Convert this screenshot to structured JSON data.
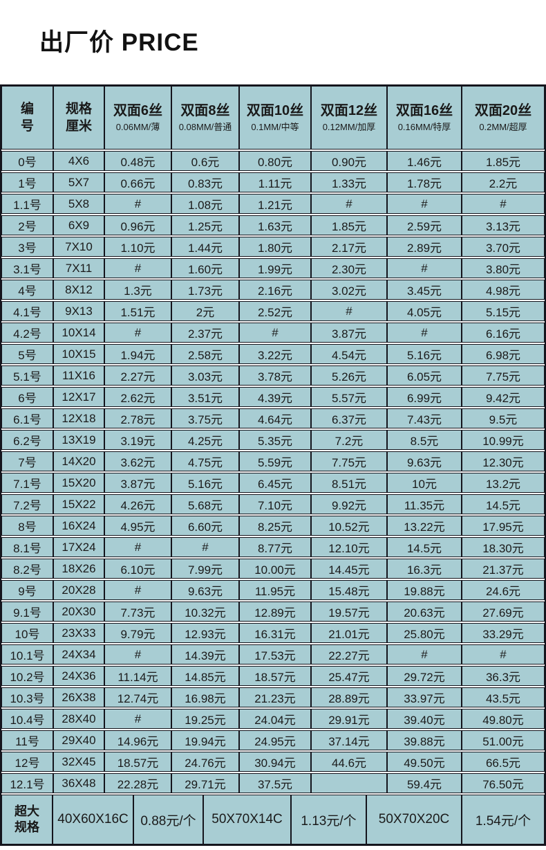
{
  "page": {
    "title": "出厂价 PRICE"
  },
  "colors": {
    "cell_background": "#a8cdd3",
    "grid_border": "#14141c",
    "text": "#1a1a1a",
    "page_background": "#ffffff"
  },
  "table": {
    "header": {
      "id_lines": [
        "编",
        "号"
      ],
      "spec_lines": [
        "规格",
        "厘米"
      ],
      "thickness_columns": [
        {
          "title": "双面6丝",
          "sub": "0.06MM/薄"
        },
        {
          "title": "双面8丝",
          "sub": "0.08MM/普通"
        },
        {
          "title": "双面10丝",
          "sub": "0.1MM/中等"
        },
        {
          "title": "双面12丝",
          "sub": "0.12MM/加厚"
        },
        {
          "title": "双面16丝",
          "sub": "0.16MM/特厚"
        },
        {
          "title": "双面20丝",
          "sub": "0.2MM/超厚"
        }
      ]
    },
    "rows": [
      {
        "id": "0号",
        "spec": "4X6",
        "prices": [
          "0.48元",
          "0.6元",
          "0.80元",
          "0.90元",
          "1.46元",
          "1.85元"
        ]
      },
      {
        "id": "1号",
        "spec": "5X7",
        "prices": [
          "0.66元",
          "0.83元",
          "1.11元",
          "1.33元",
          "1.78元",
          "2.2元"
        ]
      },
      {
        "id": "1.1号",
        "spec": "5X8",
        "prices": [
          "#",
          "1.08元",
          "1.21元",
          "#",
          "#",
          "#"
        ]
      },
      {
        "id": "2号",
        "spec": "6X9",
        "prices": [
          "0.96元",
          "1.25元",
          "1.63元",
          "1.85元",
          "2.59元",
          "3.13元"
        ]
      },
      {
        "id": "3号",
        "spec": "7X10",
        "prices": [
          "1.10元",
          "1.44元",
          "1.80元",
          "2.17元",
          "2.89元",
          "3.70元"
        ]
      },
      {
        "id": "3.1号",
        "spec": "7X11",
        "prices": [
          "#",
          "1.60元",
          "1.99元",
          "2.30元",
          "#",
          "3.80元"
        ]
      },
      {
        "id": "4号",
        "spec": "8X12",
        "prices": [
          "1.3元",
          "1.73元",
          "2.16元",
          "3.02元",
          "3.45元",
          "4.98元"
        ]
      },
      {
        "id": "4.1号",
        "spec": "9X13",
        "prices": [
          "1.51元",
          "2元",
          "2.52元",
          "#",
          "4.05元",
          "5.15元"
        ]
      },
      {
        "id": "4.2号",
        "spec": "10X14",
        "prices": [
          "#",
          "2.37元",
          "#",
          "3.87元",
          "#",
          "6.16元"
        ]
      },
      {
        "id": "5号",
        "spec": "10X15",
        "prices": [
          "1.94元",
          "2.58元",
          "3.22元",
          "4.54元",
          "5.16元",
          "6.98元"
        ]
      },
      {
        "id": "5.1号",
        "spec": "11X16",
        "prices": [
          "2.27元",
          "3.03元",
          "3.78元",
          "5.26元",
          "6.05元",
          "7.75元"
        ]
      },
      {
        "id": "6号",
        "spec": "12X17",
        "prices": [
          "2.62元",
          "3.51元",
          "4.39元",
          "5.57元",
          "6.99元",
          "9.42元"
        ]
      },
      {
        "id": "6.1号",
        "spec": "12X18",
        "prices": [
          "2.78元",
          "3.75元",
          "4.64元",
          "6.37元",
          "7.43元",
          "9.5元"
        ]
      },
      {
        "id": "6.2号",
        "spec": "13X19",
        "prices": [
          "3.19元",
          "4.25元",
          "5.35元",
          "7.2元",
          "8.5元",
          "10.99元"
        ]
      },
      {
        "id": "7号",
        "spec": "14X20",
        "prices": [
          "3.62元",
          "4.75元",
          "5.59元",
          "7.75元",
          "9.63元",
          "12.30元"
        ]
      },
      {
        "id": "7.1号",
        "spec": "15X20",
        "prices": [
          "3.87元",
          "5.16元",
          "6.45元",
          "8.51元",
          "10元",
          "13.2元"
        ]
      },
      {
        "id": "7.2号",
        "spec": "15X22",
        "prices": [
          "4.26元",
          "5.68元",
          "7.10元",
          "9.92元",
          "11.35元",
          "14.5元"
        ]
      },
      {
        "id": "8号",
        "spec": "16X24",
        "prices": [
          "4.95元",
          "6.60元",
          "8.25元",
          "10.52元",
          "13.22元",
          "17.95元"
        ]
      },
      {
        "id": "8.1号",
        "spec": "17X24",
        "prices": [
          "#",
          "#",
          "8.77元",
          "12.10元",
          "14.5元",
          "18.30元"
        ]
      },
      {
        "id": "8.2号",
        "spec": "18X26",
        "prices": [
          "6.10元",
          "7.99元",
          "10.00元",
          "14.45元",
          "16.3元",
          "21.37元"
        ]
      },
      {
        "id": "9号",
        "spec": "20X28",
        "prices": [
          "#",
          "9.63元",
          "11.95元",
          "15.48元",
          "19.88元",
          "24.6元"
        ]
      },
      {
        "id": "9.1号",
        "spec": "20X30",
        "prices": [
          "7.73元",
          "10.32元",
          "12.89元",
          "19.57元",
          "20.63元",
          "27.69元"
        ]
      },
      {
        "id": "10号",
        "spec": "23X33",
        "prices": [
          "9.79元",
          "12.93元",
          "16.31元",
          "21.01元",
          "25.80元",
          "33.29元"
        ]
      },
      {
        "id": "10.1号",
        "spec": "24X34",
        "prices": [
          "#",
          "14.39元",
          "17.53元",
          "22.27元",
          "#",
          "#"
        ]
      },
      {
        "id": "10.2号",
        "spec": "24X36",
        "prices": [
          "11.14元",
          "14.85元",
          "18.57元",
          "25.47元",
          "29.72元",
          "36.3元"
        ]
      },
      {
        "id": "10.3号",
        "spec": "26X38",
        "prices": [
          "12.74元",
          "16.98元",
          "21.23元",
          "28.89元",
          "33.97元",
          "43.5元"
        ]
      },
      {
        "id": "10.4号",
        "spec": "28X40",
        "prices": [
          "#",
          "19.25元",
          "24.04元",
          "29.91元",
          "39.40元",
          "49.80元"
        ]
      },
      {
        "id": "11号",
        "spec": "29X40",
        "prices": [
          "14.96元",
          "19.94元",
          "24.95元",
          "37.14元",
          "39.88元",
          "51.00元"
        ]
      },
      {
        "id": "12号",
        "spec": "32X45",
        "prices": [
          "18.57元",
          "24.76元",
          "30.94元",
          "44.6元",
          "49.50元",
          "66.5元"
        ]
      },
      {
        "id": "12.1号",
        "spec": "36X48",
        "prices": [
          "22.28元",
          "29.71元",
          "37.5元",
          "",
          "59.4元",
          "76.50元"
        ]
      }
    ],
    "oversize": {
      "label_lines": [
        "超大",
        "规格"
      ],
      "cells": [
        "40X60X16C",
        "0.88元/个",
        "50X70X14C",
        "1.13元/个",
        "50X70X20C",
        "1.54元/个"
      ]
    }
  }
}
